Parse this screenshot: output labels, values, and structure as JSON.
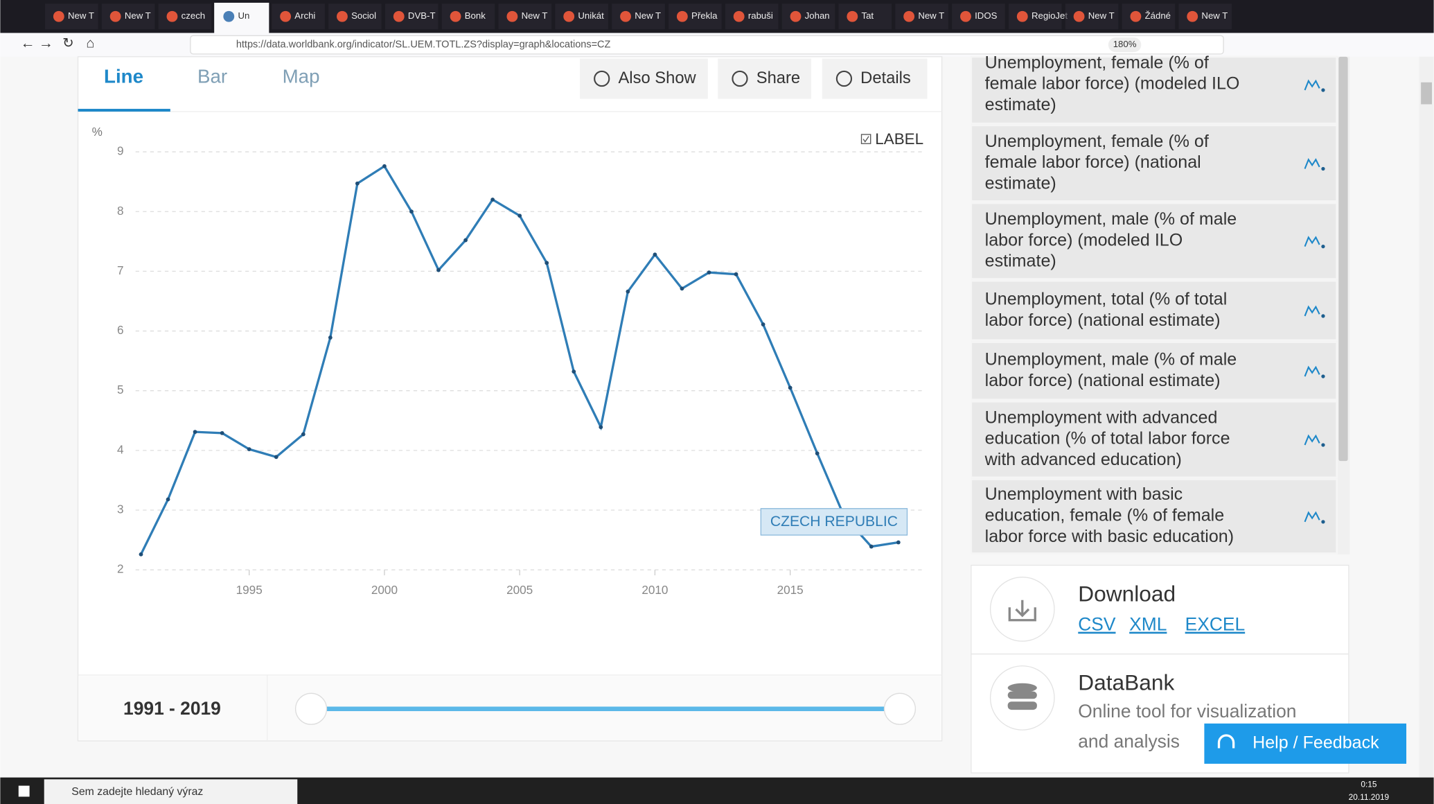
{
  "browser": {
    "tabs": [
      "New T",
      "New T",
      "czech",
      "Un",
      "Archi",
      "Sociol",
      "DVB-T",
      "Bonk",
      "New T",
      "Unikát",
      "New T",
      "Překla",
      "rabuši",
      "Johan",
      "Tat",
      "New T",
      "IDOS",
      "RegioJet",
      "New T",
      "Žádné",
      "New T"
    ],
    "active_tab": 3,
    "url": "https://data.worldbank.org/indicator/SL.UEM.TOTL.ZS?display=graph&locations=CZ",
    "zoom": "180%"
  },
  "chart_tabs": [
    "Line",
    "Bar",
    "Map"
  ],
  "chart_buttons": [
    "Also Show",
    "Share",
    "Details"
  ],
  "label_toggle": "LABEL",
  "chart_data": {
    "type": "line",
    "y_unit": "%",
    "x": [
      1991,
      1992,
      1993,
      1994,
      1995,
      1996,
      1997,
      1998,
      1999,
      2000,
      2001,
      2002,
      2003,
      2004,
      2005,
      2006,
      2007,
      2008,
      2009,
      2010,
      2011,
      2012,
      2013,
      2014,
      2015,
      2016,
      2017,
      2018,
      2019
    ],
    "series": [
      {
        "name": "CZECH REPUBLIC",
        "color": "#2f7db6",
        "values": [
          2.26,
          3.18,
          4.31,
          4.29,
          4.02,
          3.89,
          4.27,
          5.89,
          8.47,
          8.76,
          8.0,
          7.02,
          7.52,
          8.2,
          7.93,
          7.14,
          5.32,
          4.39,
          6.66,
          7.28,
          6.71,
          6.98,
          6.95,
          6.11,
          5.05,
          3.95,
          2.89,
          2.39,
          2.46
        ]
      }
    ],
    "xlim": [
      1990.8,
      2020
    ],
    "ylim": [
      2,
      9
    ],
    "xticks": [
      1995,
      2000,
      2005,
      2010,
      2015
    ],
    "yticks": [
      2,
      3,
      4,
      5,
      6,
      7,
      8,
      9
    ],
    "grid": true
  },
  "range": "1991 - 2019",
  "indicators": [
    {
      "lines": [
        "Unemployment, female (% of",
        "female labor force) (modeled ILO",
        "estimate)"
      ]
    },
    {
      "lines": [
        "Unemployment, female (% of",
        "female labor force) (national",
        "estimate)"
      ]
    },
    {
      "lines": [
        "Unemployment, male (% of male",
        "labor force) (modeled ILO",
        "estimate)"
      ]
    },
    {
      "lines": [
        "Unemployment, total (% of total",
        "labor force) (national estimate)"
      ]
    },
    {
      "lines": [
        "Unemployment, male (% of male",
        "labor force) (national estimate)"
      ]
    },
    {
      "lines": [
        "Unemployment with advanced",
        "education (% of total labor force",
        "with advanced education)"
      ]
    },
    {
      "lines": [
        "Unemployment with basic",
        "education, female (% of female",
        "labor force with basic education)"
      ]
    }
  ],
  "download": {
    "title": "Download",
    "formats": [
      "CSV",
      "XML",
      "EXCEL"
    ]
  },
  "databank": {
    "title": "DataBank",
    "lines": [
      "Online tool for visualization",
      "and analysis"
    ]
  },
  "help": "Help / Feedback",
  "taskbar": {
    "search": "Sem zadejte hledaný výraz",
    "time": "0:15",
    "date": "20.11.2019"
  }
}
